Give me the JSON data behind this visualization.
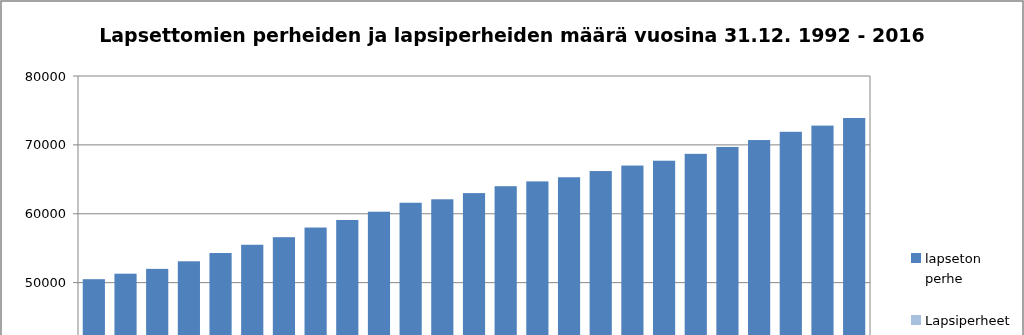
{
  "chart_data": {
    "type": "bar",
    "title": "Lapsettomien perheiden ja lapsiperheiden määrä vuosina 31.12. 1992  - 2016",
    "categories": [
      null,
      null,
      null,
      null,
      null,
      null,
      null,
      null,
      null,
      null,
      null,
      null,
      null,
      null,
      null,
      null,
      null,
      null,
      null,
      null,
      null,
      null,
      null,
      null,
      null
    ],
    "series": [
      {
        "name": "lapseton perhe",
        "color": "#4f81bd",
        "values": [
          50500,
          51300,
          52000,
          53100,
          54300,
          55500,
          56600,
          58000,
          59100,
          60300,
          61600,
          62100,
          63000,
          64000,
          64700,
          65300,
          66200,
          67000,
          67700,
          68700,
          69700,
          70700,
          71900,
          72800,
          73900
        ]
      },
      {
        "name": "Lapsiperheet",
        "color": "#a7c0de",
        "values": [
          null,
          null,
          null,
          null,
          null,
          null,
          null,
          null,
          null,
          null,
          null,
          null,
          null,
          null,
          null,
          null,
          null,
          null,
          null,
          null,
          null,
          null,
          null,
          null,
          null
        ]
      }
    ],
    "ylim": [
      42400,
      80000
    ],
    "yticks": [
      50000,
      60000,
      70000,
      80000
    ],
    "grid": "y",
    "legend": "right"
  }
}
